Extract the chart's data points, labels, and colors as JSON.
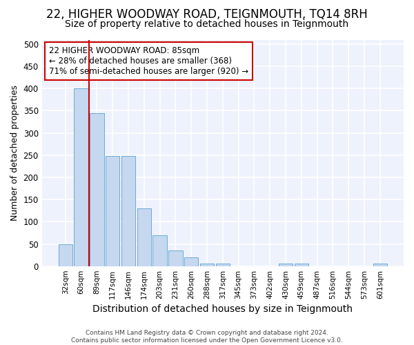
{
  "title": "22, HIGHER WOODWAY ROAD, TEIGNMOUTH, TQ14 8RH",
  "subtitle": "Size of property relative to detached houses in Teignmouth",
  "xlabel": "Distribution of detached houses by size in Teignmouth",
  "ylabel": "Number of detached properties",
  "footer_line1": "Contains HM Land Registry data © Crown copyright and database right 2024.",
  "footer_line2": "Contains public sector information licensed under the Open Government Licence v3.0.",
  "categories": [
    "32sqm",
    "60sqm",
    "89sqm",
    "117sqm",
    "146sqm",
    "174sqm",
    "203sqm",
    "231sqm",
    "260sqm",
    "288sqm",
    "317sqm",
    "345sqm",
    "373sqm",
    "402sqm",
    "430sqm",
    "459sqm",
    "487sqm",
    "516sqm",
    "544sqm",
    "573sqm",
    "601sqm"
  ],
  "values": [
    50,
    401,
    345,
    248,
    248,
    130,
    70,
    35,
    20,
    6,
    5,
    0,
    0,
    0,
    5,
    5,
    0,
    0,
    0,
    0,
    5
  ],
  "bar_color": "#c5d8f0",
  "bar_edge_color": "#6aaad4",
  "vline_color": "#cc0000",
  "vline_x": 1.5,
  "annotation_text": "22 HIGHER WOODWAY ROAD: 85sqm\n← 28% of detached houses are smaller (368)\n71% of semi-detached houses are larger (920) →",
  "annotation_box_color": "#ffffff",
  "annotation_box_edge": "#cc0000",
  "background_color": "#ffffff",
  "plot_bg_color": "#eef2fc",
  "ylim": [
    0,
    510
  ],
  "yticks": [
    0,
    50,
    100,
    150,
    200,
    250,
    300,
    350,
    400,
    450,
    500
  ],
  "grid_color": "#ffffff",
  "title_fontsize": 12,
  "subtitle_fontsize": 10,
  "ylabel_fontsize": 9,
  "xlabel_fontsize": 10
}
